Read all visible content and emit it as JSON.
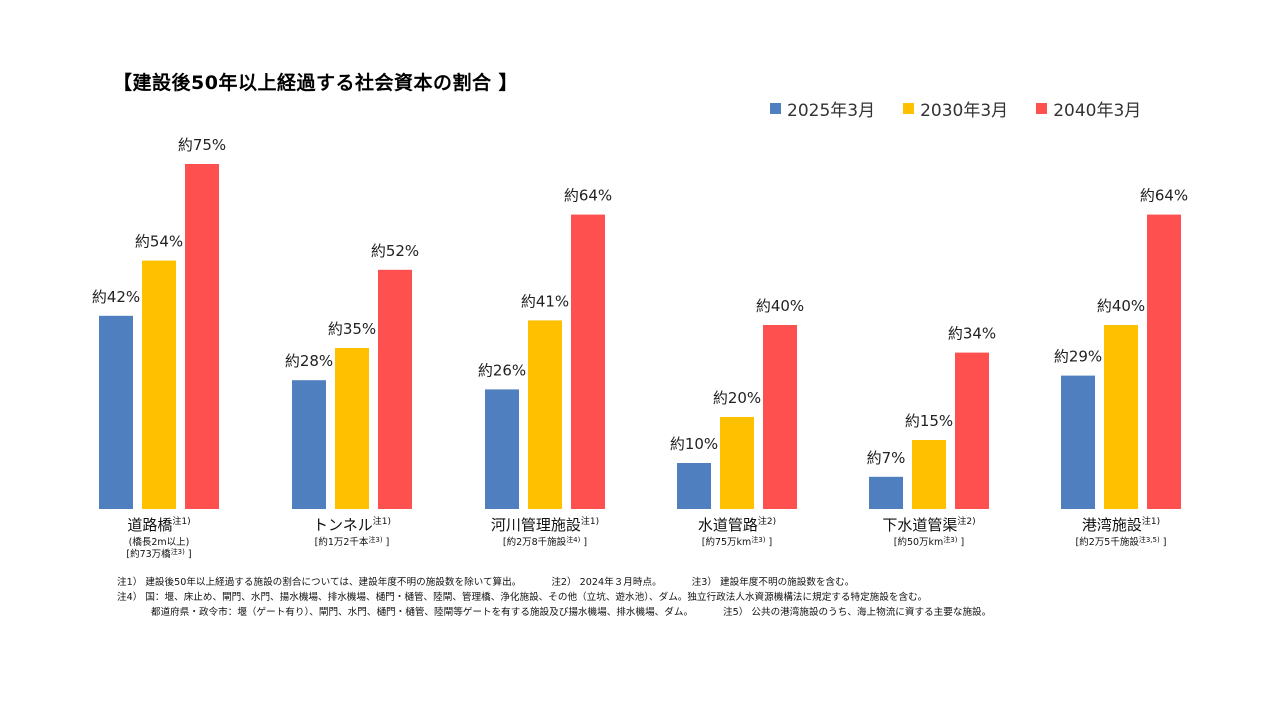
{
  "chart_data": {
    "type": "bar",
    "title": "【建設後50年以上経過する社会資本の割合 】",
    "categories": [
      "道路橋",
      "トンネル",
      "河川管理施設",
      "水道管路",
      "下水道管渠",
      "港湾施設"
    ],
    "category_notes": [
      "注1)",
      "注1)",
      "注1)",
      "注2)",
      "注2)",
      "注1)"
    ],
    "category_subs": [
      [
        "(橋長2m以上)",
        "[約73万橋",
        "注3)",
        " ]"
      ],
      [
        "[約1万2千本",
        "注3)",
        " ]"
      ],
      [
        "[約2万8千施設",
        "注4)",
        " ]"
      ],
      [
        "[約75万km",
        "注3)",
        " ]"
      ],
      [
        "[約50万km",
        "注3)",
        " ]"
      ],
      [
        "[約2万5千施設",
        "注3,5)",
        " ]"
      ]
    ],
    "series": [
      {
        "name": "2025年3月",
        "color": "#4F7FBF",
        "values": [
          42,
          28,
          26,
          10,
          7,
          29
        ],
        "labels": [
          "約42%",
          "約28%",
          "約26%",
          "約10%",
          "約7%",
          "約29%"
        ]
      },
      {
        "name": "2030年3月",
        "color": "#FFC000",
        "values": [
          54,
          35,
          41,
          20,
          15,
          40
        ],
        "labels": [
          "約54%",
          "約35%",
          "約41%",
          "約20%",
          "約15%",
          "約40%"
        ]
      },
      {
        "name": "2040年3月",
        "color": "#FF5050",
        "values": [
          75,
          52,
          64,
          40,
          34,
          64
        ],
        "labels": [
          "約75%",
          "約52%",
          "約64%",
          "約40%",
          "約34%",
          "約64%"
        ]
      }
    ],
    "ylim": [
      0,
      75
    ],
    "grid": false,
    "legend_position": "top-right"
  },
  "footnotes": {
    "n1": "注1） 建設後50年以上経過する施設の割合については、建設年度不明の施設数を除いて算出。",
    "n2": "注2） 2024年３月時点。",
    "n3": "注3） 建設年度不明の施設数を含む。",
    "n4": "注4） 国：堰、床止め、閘門、水門、揚水機場、排水機場、樋門・樋管、陸閘、管理橋、浄化施設、その他（立坑、遊水池）、ダム。独立行政法人水資源機構法に規定する特定施設を含む。",
    "n4b": "都道府県・政令市：堰（ゲート有り）、閘門、水門、樋門・樋管、陸閘等ゲートを有する施設及び揚水機場、排水機場、ダム。",
    "n5": "注5） 公共の港湾施設のうち、海上物流に資する主要な施設。"
  }
}
